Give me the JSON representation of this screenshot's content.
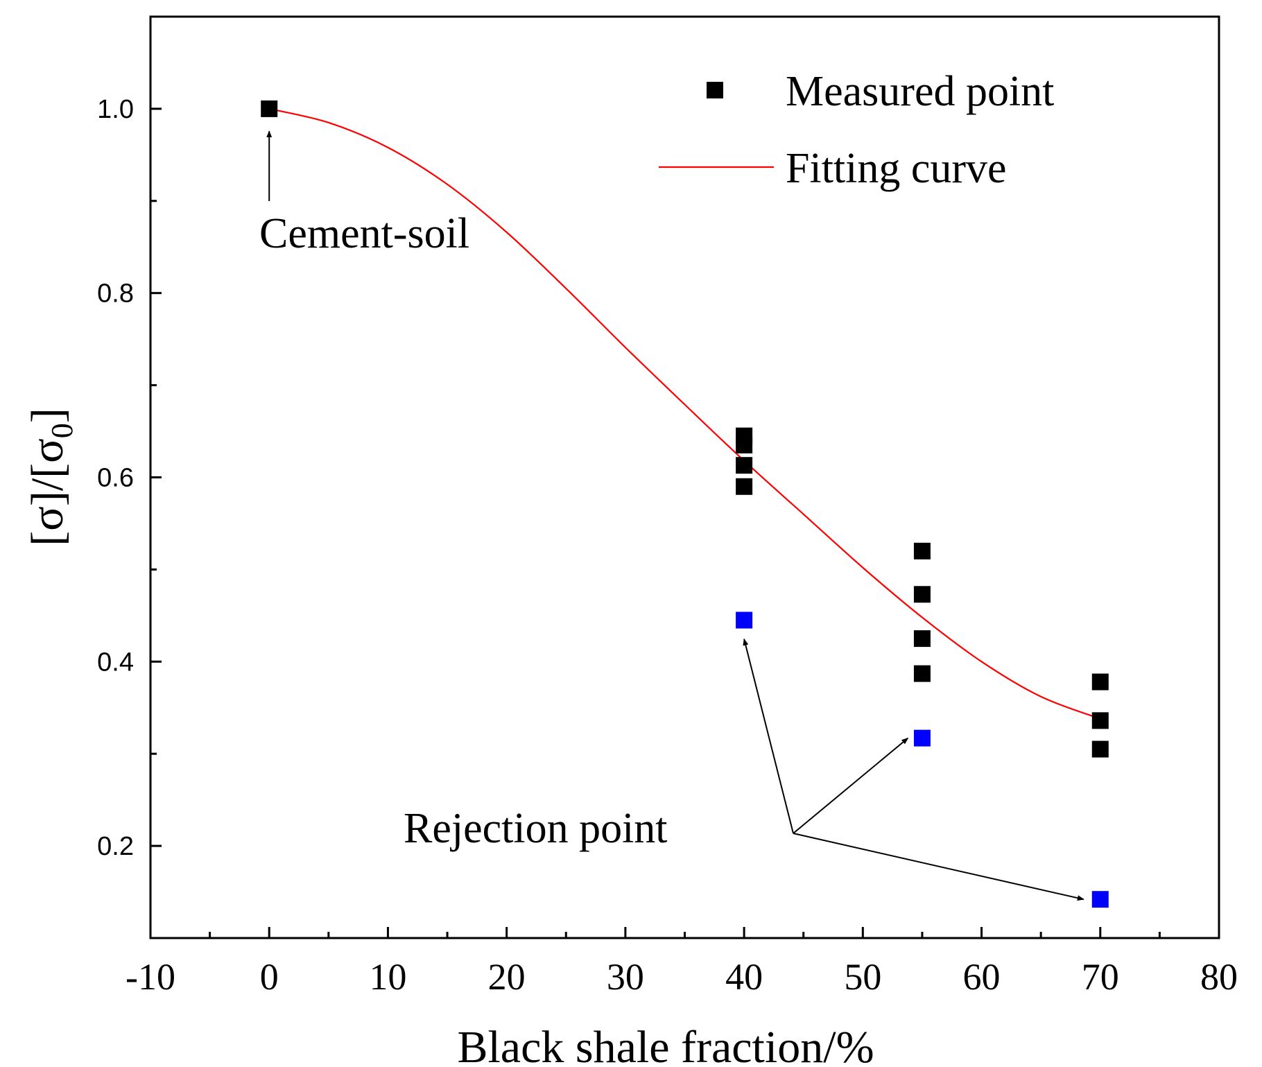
{
  "chart_data": {
    "type": "scatter",
    "title": "",
    "xlabel": "Black shale fraction/%",
    "ylabel": "[σ]/[σ0]",
    "ylabel_main": "[σ]/[σ",
    "ylabel_sub": "0",
    "ylabel_tail": "]",
    "xlim": [
      -10,
      80
    ],
    "ylim": [
      0.1,
      1.1
    ],
    "xticks": [
      -10,
      0,
      10,
      20,
      30,
      40,
      50,
      60,
      70,
      80
    ],
    "xtick_labels": [
      "-10",
      "0",
      "10",
      "20",
      "30",
      "40",
      "50",
      "60",
      "70",
      "80"
    ],
    "yticks": [
      0.2,
      0.4,
      0.6,
      0.8,
      1.0
    ],
    "ytick_labels": [
      "0.2",
      "0.4",
      "0.6",
      "0.8",
      "1.0"
    ],
    "grid": false,
    "legend_position": "top-right",
    "series": [
      {
        "name": "Measured point",
        "kind": "scatter",
        "color": "#000000",
        "points": [
          {
            "x": 0,
            "y": 1.0
          },
          {
            "x": 40,
            "y": 0.645
          },
          {
            "x": 40,
            "y": 0.635
          },
          {
            "x": 40,
            "y": 0.613
          },
          {
            "x": 40,
            "y": 0.59
          },
          {
            "x": 55,
            "y": 0.52
          },
          {
            "x": 55,
            "y": 0.473
          },
          {
            "x": 55,
            "y": 0.425
          },
          {
            "x": 55,
            "y": 0.387
          },
          {
            "x": 70,
            "y": 0.378
          },
          {
            "x": 70,
            "y": 0.336
          },
          {
            "x": 70,
            "y": 0.305
          }
        ]
      },
      {
        "name": "Rejection point",
        "kind": "scatter",
        "color": "#0000ff",
        "points": [
          {
            "x": 40,
            "y": 0.445
          },
          {
            "x": 55,
            "y": 0.317
          },
          {
            "x": 70,
            "y": 0.142
          }
        ]
      },
      {
        "name": "Fitting curve",
        "kind": "line",
        "color": "#ff0000",
        "points": [
          {
            "x": 0,
            "y": 1.0
          },
          {
            "x": 5,
            "y": 0.985
          },
          {
            "x": 10,
            "y": 0.958
          },
          {
            "x": 15,
            "y": 0.918
          },
          {
            "x": 20,
            "y": 0.866
          },
          {
            "x": 25,
            "y": 0.805
          },
          {
            "x": 30,
            "y": 0.741
          },
          {
            "x": 35,
            "y": 0.679
          },
          {
            "x": 40,
            "y": 0.618
          },
          {
            "x": 45,
            "y": 0.56
          },
          {
            "x": 50,
            "y": 0.502
          },
          {
            "x": 55,
            "y": 0.448
          },
          {
            "x": 60,
            "y": 0.4
          },
          {
            "x": 65,
            "y": 0.362
          },
          {
            "x": 70,
            "y": 0.338
          }
        ]
      }
    ],
    "legend": [
      {
        "label": "Measured point",
        "marker": "square",
        "color": "#000000"
      },
      {
        "label": "Fitting curve",
        "marker": "line",
        "color": "#ff0000"
      }
    ],
    "annotations": [
      {
        "text": "Cement-soil",
        "points_to": [
          {
            "x": 0,
            "y": 0.99
          }
        ]
      },
      {
        "text": "Rejection point",
        "points_to": [
          {
            "x": 40,
            "y": 0.435
          },
          {
            "x": 53.8,
            "y": 0.317
          },
          {
            "x": 68.6,
            "y": 0.142
          }
        ]
      }
    ]
  }
}
